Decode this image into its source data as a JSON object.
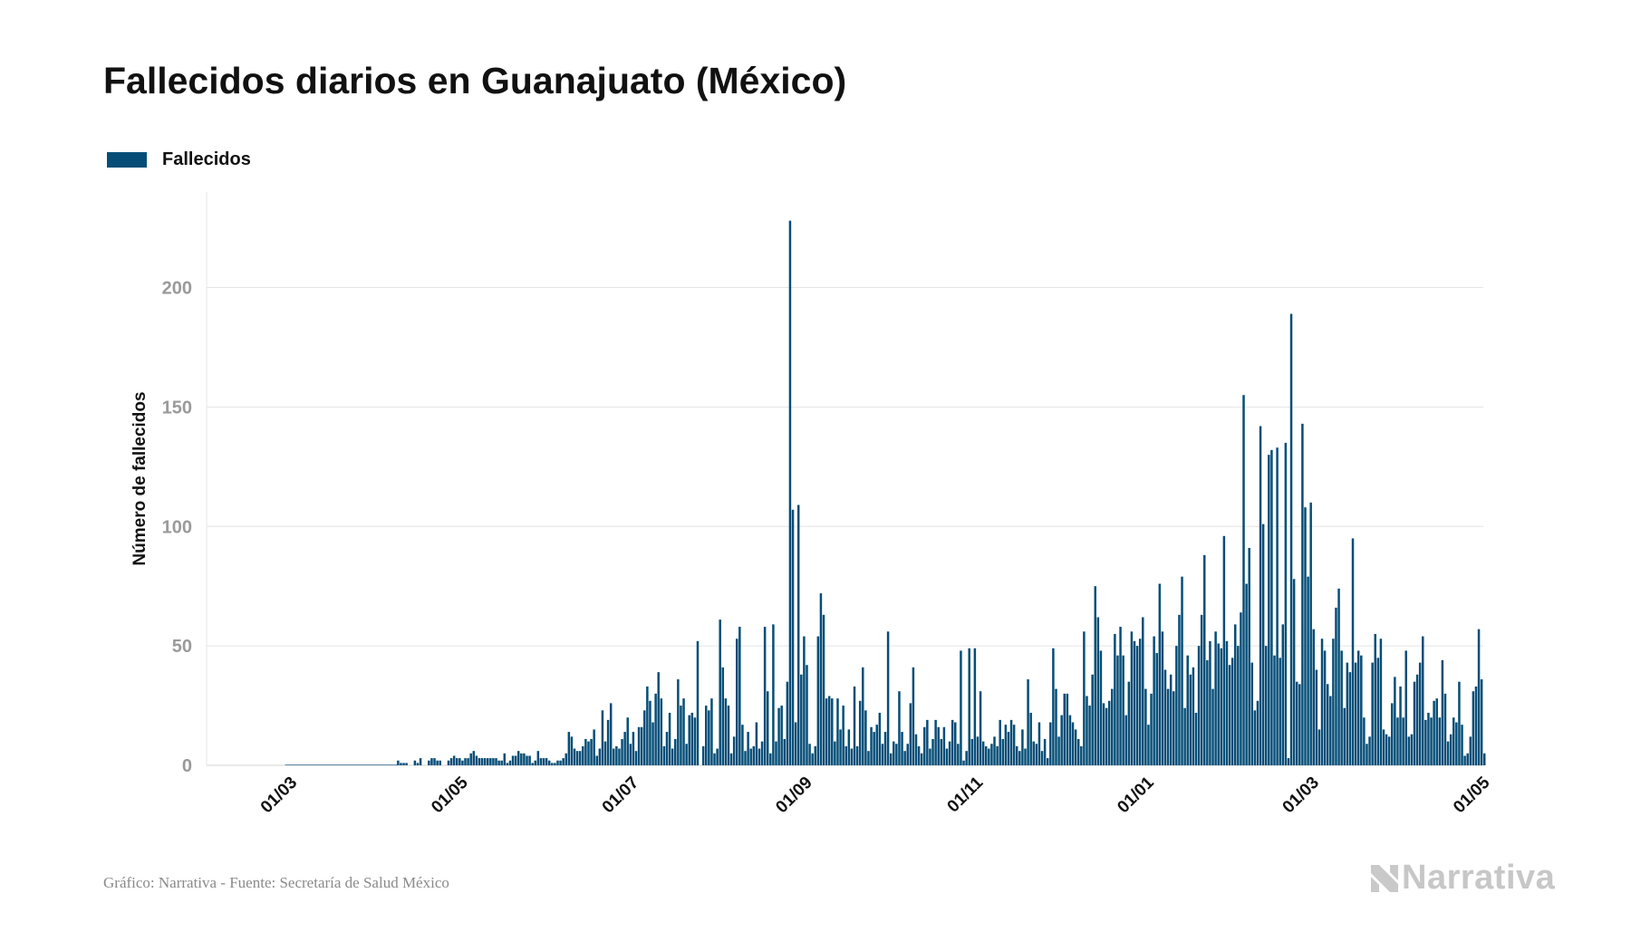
{
  "title": "Fallecidos diarios en Guanajuato (México)",
  "legend": {
    "label": "Fallecidos",
    "color": "#054d77"
  },
  "footer": "Gráfico: Narrativa - Fuente: Secretaría de Salud México",
  "logo": {
    "text": "Narrativa",
    "icon": "narrativa-n-icon"
  },
  "chart_data": {
    "type": "bar",
    "ylabel": "Número de fallecidos",
    "xlabel": "",
    "ylim": [
      0,
      240
    ],
    "yticks": [
      0,
      50,
      100,
      150,
      200
    ],
    "xlim": [
      "2020-01-31",
      "2021-05-01"
    ],
    "xticks": [
      {
        "date": "2020-03-01",
        "label": "01/03"
      },
      {
        "date": "2020-05-01",
        "label": "01/05"
      },
      {
        "date": "2020-07-01",
        "label": "01/07"
      },
      {
        "date": "2020-09-01",
        "label": "01/09"
      },
      {
        "date": "2020-11-01",
        "label": "01/11"
      },
      {
        "date": "2021-01-01",
        "label": "01/01"
      },
      {
        "date": "2021-03-01",
        "label": "01/03"
      },
      {
        "date": "2021-05-01",
        "label": "01/05"
      }
    ],
    "grid": true,
    "legend_position": "top-left",
    "color": "#054d77",
    "series": [
      {
        "name": "Fallecidos",
        "start_date": "2020-04-08",
        "values": [
          2,
          1,
          1,
          1,
          0,
          0,
          2,
          1,
          3,
          0,
          0,
          2,
          3,
          3,
          2,
          2,
          0,
          0,
          2,
          3,
          4,
          3,
          3,
          2,
          3,
          3,
          5,
          6,
          4,
          3,
          3,
          3,
          3,
          3,
          3,
          3,
          2,
          2,
          5,
          1,
          2,
          4,
          4,
          6,
          5,
          5,
          4,
          4,
          1,
          2,
          6,
          3,
          3,
          3,
          2,
          1,
          1,
          2,
          2,
          3,
          5,
          14,
          12,
          7,
          6,
          6,
          8,
          11,
          10,
          11,
          15,
          4,
          7,
          23,
          10,
          19,
          26,
          7,
          8,
          7,
          11,
          14,
          20,
          9,
          14,
          6,
          16,
          16,
          23,
          33,
          27,
          18,
          30,
          39,
          28,
          8,
          14,
          22,
          7,
          11,
          36,
          25,
          28,
          9,
          21,
          22,
          20,
          52,
          0,
          8,
          25,
          23,
          28,
          5,
          7,
          61,
          41,
          28,
          25,
          5,
          12,
          53,
          58,
          17,
          6,
          14,
          7,
          8,
          18,
          7,
          10,
          58,
          31,
          5,
          59,
          10,
          24,
          25,
          11,
          35,
          228,
          107,
          18,
          109,
          38,
          54,
          42,
          9,
          5,
          8,
          54,
          72,
          63,
          28,
          29,
          28,
          10,
          28,
          15,
          25,
          8,
          15,
          7,
          33,
          8,
          27,
          41,
          23,
          6,
          16,
          14,
          17,
          22,
          9,
          14,
          56,
          5,
          10,
          9,
          31,
          14,
          6,
          9,
          26,
          41,
          13,
          8,
          5,
          16,
          19,
          7,
          11,
          19,
          16,
          11,
          16,
          7,
          10,
          19,
          18,
          9,
          48,
          2,
          6,
          49,
          11,
          49,
          12,
          31,
          10,
          8,
          7,
          9,
          12,
          8,
          19,
          11,
          17,
          14,
          19,
          17,
          8,
          6,
          15,
          7,
          36,
          22,
          10,
          9,
          18,
          6,
          11,
          3,
          18,
          49,
          32,
          12,
          21,
          30,
          30,
          21,
          18,
          15,
          11,
          8,
          56,
          29,
          25,
          38,
          75,
          62,
          48,
          26,
          24,
          27,
          32,
          55,
          46,
          58,
          46,
          21,
          35,
          56,
          52,
          50,
          53,
          62,
          32,
          17,
          30,
          54,
          47,
          76,
          56,
          40,
          32,
          38,
          31,
          50,
          63,
          79,
          24,
          46,
          38,
          41,
          22,
          50,
          63,
          88,
          44,
          52,
          32,
          56,
          51,
          49,
          96,
          52,
          42,
          45,
          59,
          50,
          64,
          155,
          76,
          91,
          43,
          23,
          27,
          142,
          101,
          50,
          130,
          132,
          46,
          133,
          45,
          59,
          135,
          3,
          189,
          78,
          35,
          34,
          143,
          108,
          79,
          110,
          57,
          40,
          15,
          53,
          48,
          34,
          29,
          53,
          66,
          74,
          48,
          24,
          43,
          39,
          95,
          43,
          48,
          46,
          20,
          9,
          12,
          43,
          55,
          45,
          53,
          15,
          13,
          12,
          26,
          37,
          20,
          33,
          20,
          48,
          12,
          13,
          35,
          38,
          43,
          54,
          19,
          22,
          20,
          27,
          28,
          20,
          44,
          30,
          10,
          13,
          20,
          18,
          35,
          17,
          4,
          5,
          12,
          31,
          33,
          57,
          36,
          5
        ]
      }
    ]
  }
}
